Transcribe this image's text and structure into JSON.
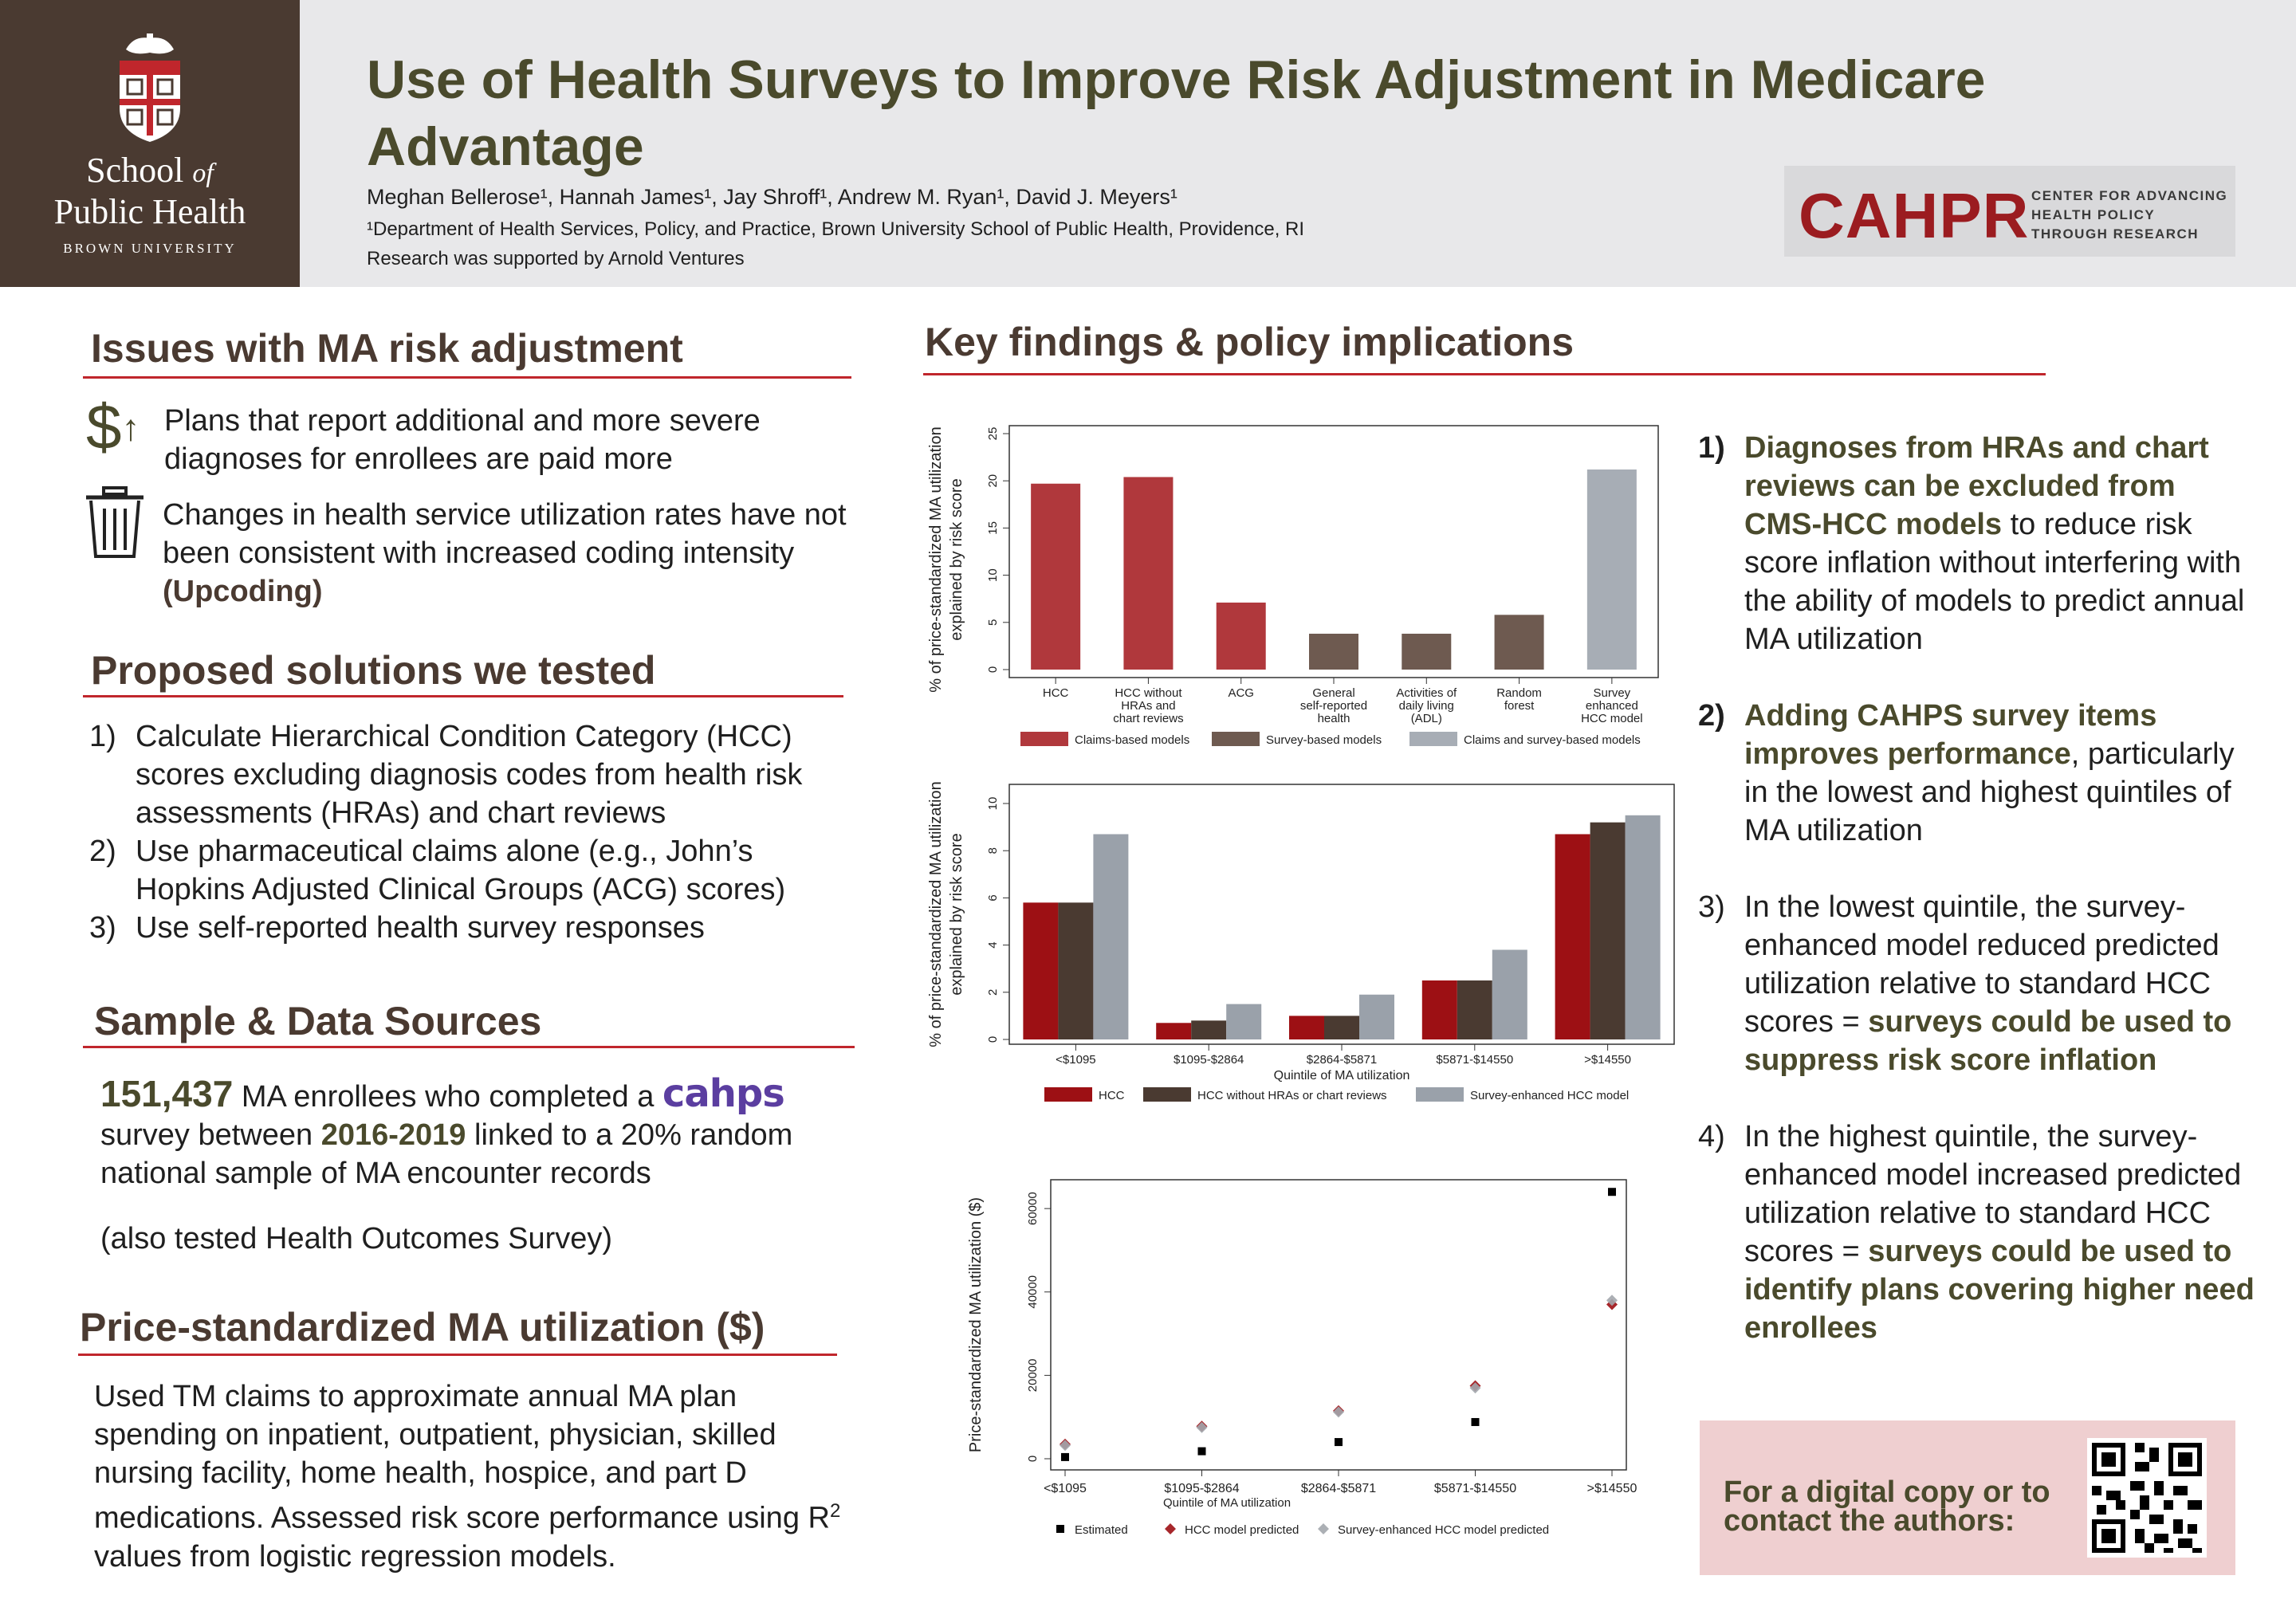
{
  "logo": {
    "school_line1": "School",
    "school_of": "of",
    "school_line2": "Public Health",
    "university": "BROWN UNIVERSITY"
  },
  "header": {
    "title": "Use of Health Surveys to Improve Risk Adjustment in Medicare Advantage",
    "authors": "Meghan Bellerose¹, Hannah James¹, Jay Shroff¹, Andrew M. Ryan¹, David J. Meyers¹",
    "affiliation": "¹Department of Health Services, Policy, and Practice, Brown University School of Public Health, Providence, RI",
    "support": "Research was supported by Arnold Ventures",
    "cahpr_word": "CAHPR",
    "cahpr_tagline": [
      "CENTER FOR ADVANCING",
      "HEALTH POLICY",
      "THROUGH RESEARCH"
    ]
  },
  "issues": {
    "heading": "Issues with MA risk adjustment",
    "item1": "Plans that report additional and more severe diagnoses for enrollees are paid more",
    "item2_pre": "Changes in health service utilization rates have not been consistent with increased coding intensity ",
    "item2_bold": "(Upcoding)",
    "icon1": "dollar-up-icon",
    "icon2": "trash-icon"
  },
  "solutions": {
    "heading": "Proposed solutions we tested",
    "items": [
      {
        "num": "1)",
        "text": "Calculate Hierarchical Condition Category (HCC) scores excluding diagnosis codes from health risk assessments (HRAs) and chart reviews"
      },
      {
        "num": "2)",
        "text": "Use pharmaceutical claims alone (e.g., John’s Hopkins Adjusted Clinical Groups (ACG) scores)"
      },
      {
        "num": "3)",
        "text": "Use self-reported health survey responses"
      }
    ]
  },
  "sample": {
    "heading": "Sample & Data Sources",
    "count": "151,437",
    "text1": " MA enrollees who completed a ",
    "cahps_logo": "cahps",
    "text2": "survey between ",
    "years": "2016-2019",
    "text3": " linked to a 20% random national sample of MA encounter records",
    "note": "(also tested Health Outcomes Survey)"
  },
  "price": {
    "heading": "Price-standardized MA utilization ($)",
    "text_pre": "Used TM claims to approximate annual MA plan spending on inpatient, outpatient, physician, skilled nursing facility, home health, hospice, and part D medications. Assessed risk score performance using R",
    "sup": "2",
    "text_post": " values from logistic regression models."
  },
  "key": {
    "heading": "Key findings & policy implications"
  },
  "chart_data": [
    {
      "type": "bar",
      "ylabel": "% of price-standardized MA utilization explained by risk score",
      "ylim": [
        0,
        25
      ],
      "yticks": [
        "0",
        "5",
        "10",
        "15",
        "20",
        "25"
      ],
      "categories": [
        [
          "HCC"
        ],
        [
          "HCC without",
          "HRAs and",
          "chart reviews"
        ],
        [
          "ACG"
        ],
        [
          "General",
          "self-reported",
          "health"
        ],
        [
          "Activities of",
          "daily living",
          "(ADL)"
        ],
        [
          "Random",
          "forest"
        ],
        [
          "Survey",
          "enhanced",
          "HCC model"
        ]
      ],
      "values": [
        19.7,
        20.4,
        7.1,
        3.8,
        3.8,
        5.8,
        21.2
      ],
      "groups": [
        0,
        0,
        0,
        1,
        1,
        1,
        2
      ],
      "legend": [
        "Claims-based models",
        "Survey-based models",
        "Claims and survey-based models"
      ],
      "colors": [
        "#b0383c",
        "#6e5a50",
        "#a7adb5"
      ]
    },
    {
      "type": "bar",
      "ylabel": "% of price-standardized MA utilization explained by risk score",
      "xlabel": "Quintile of MA utilization",
      "ylim": [
        0,
        10
      ],
      "yticks": [
        "0",
        "2",
        "4",
        "6",
        "8",
        "10"
      ],
      "categories": [
        "<$1095",
        "$1095-$2864",
        "$2864-$5871",
        "$5871-$14550",
        ">$14550"
      ],
      "series": [
        {
          "name": "HCC",
          "values": [
            5.8,
            0.7,
            1.0,
            2.5,
            8.7
          ],
          "color": "#9d1014"
        },
        {
          "name": "HCC without HRAs or chart reviews",
          "values": [
            5.8,
            0.8,
            1.0,
            2.5,
            9.2
          ],
          "color": "#4a3a31"
        },
        {
          "name": "Survey-enhanced HCC model",
          "values": [
            8.7,
            1.5,
            1.9,
            3.8,
            9.5
          ],
          "color": "#9aa1aa"
        }
      ]
    },
    {
      "type": "scatter",
      "ylabel": "Price-standardized MA utilization ($)",
      "xlabel": "Quintile of MA utilization",
      "ylim": [
        0,
        65000
      ],
      "yticks": [
        "0",
        "20000",
        "40000",
        "60000"
      ],
      "categories": [
        "<$1095",
        "$1095-$2864",
        "$2864-$5871",
        "$5871-$14550",
        ">$14550"
      ],
      "series": [
        {
          "name": "Estimated",
          "values": [
            400,
            1800,
            4000,
            8800,
            64000
          ],
          "color": "#000000",
          "marker": "square"
        },
        {
          "name": "HCC model predicted",
          "values": [
            3500,
            7800,
            11500,
            17500,
            37000
          ],
          "color": "#9d1014",
          "marker": "diamond"
        },
        {
          "name": "Survey-enhanced HCC model predicted",
          "values": [
            3200,
            7500,
            11200,
            17000,
            38000
          ],
          "color": "#a3a7ad",
          "marker": "diamond"
        }
      ]
    }
  ],
  "findings": [
    {
      "num": "1)",
      "bold": "Diagnoses from HRAs and chart reviews can be excluded from CMS-HCC models",
      "rest": " to reduce risk score inflation without interfering with the ability of models to predict annual MA utilization"
    },
    {
      "num": "2)",
      "bold": "Adding CAHPS survey items improves performance",
      "rest": ", particularly in the lowest and highest quintiles of MA utilization"
    },
    {
      "num": "3)",
      "pre": "In the lowest quintile, the survey-enhanced model reduced predicted utilization relative to standard HCC scores = ",
      "bold": "surveys could be used to suppress risk score inflation"
    },
    {
      "num": "4)",
      "pre": "In the highest quintile, the survey-enhanced model increased predicted utilization relative to standard HCC scores = ",
      "bold": "surveys could be used to identify plans covering higher need enrollees"
    }
  ],
  "contact": {
    "text": "For a digital copy or to contact the authors:",
    "qr": "qr-code-icon"
  }
}
